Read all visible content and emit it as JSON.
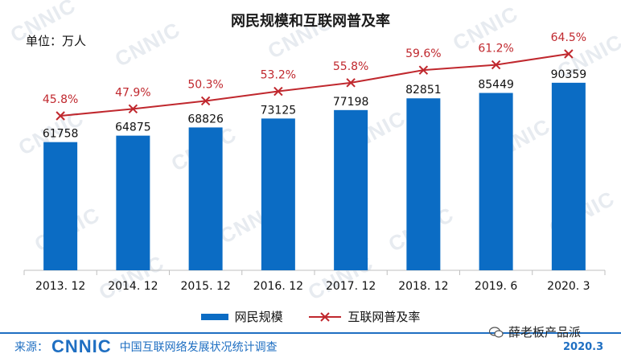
{
  "watermark": "CNNIC",
  "chart_data": {
    "type": "bar+line",
    "title": "网民规模和互联网普及率",
    "unit_label": "单位：万人",
    "categories": [
      "2013. 12",
      "2014. 12",
      "2015. 12",
      "2016. 12",
      "2017. 12",
      "2018. 12",
      "2019. 6",
      "2020. 3"
    ],
    "series": [
      {
        "name": "网民规模",
        "type": "bar",
        "color": "#0b6cc4",
        "values": [
          61758,
          64875,
          68826,
          73125,
          77198,
          82851,
          85449,
          90359
        ],
        "labels": [
          "61758",
          "64875",
          "68826",
          "73125",
          "77198",
          "82851",
          "85449",
          "90359"
        ]
      },
      {
        "name": "互联网普及率",
        "type": "line",
        "color": "#c0282e",
        "values": [
          45.8,
          47.9,
          50.3,
          53.2,
          55.8,
          59.6,
          61.2,
          64.5
        ],
        "labels": [
          "45.8%",
          "47.9%",
          "50.3%",
          "53.2%",
          "55.8%",
          "59.6%",
          "61.2%",
          "64.5%"
        ]
      }
    ],
    "ylim": [
      0,
      100000
    ],
    "y2lim": [
      35,
      70
    ],
    "grid": false,
    "legend_position": "bottom-center"
  },
  "footer": {
    "source_prefix": "来源：",
    "logo_text": "CNNIC",
    "source_name": "中国互联网络发展状况统计调查",
    "date": "2020.3"
  },
  "wechat_account": "薛老板产品派",
  "colors": {
    "bar": "#0b6cc4",
    "line": "#c0282e",
    "footer": "#1f6fc2"
  }
}
